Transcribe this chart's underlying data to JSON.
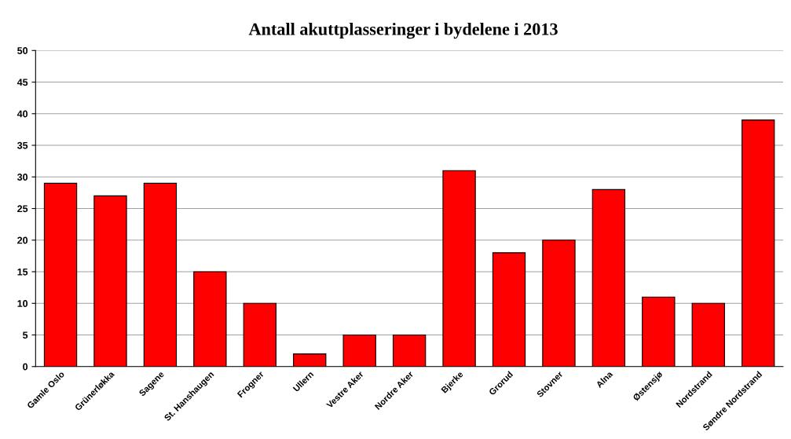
{
  "chart_data": {
    "type": "bar",
    "title": "Antall akuttplasseringer i bydelene i 2013",
    "categories": [
      "Gamle Oslo",
      "Grünerløkka",
      "Sagene",
      "St. Hanshaugen",
      "Frogner",
      "Ullern",
      "Vestre Aker",
      "Nordre Aker",
      "Bjerke",
      "Grorud",
      "Stovner",
      "Alna",
      "Østensjø",
      "Nordstrand",
      "Søndre Nordstrand"
    ],
    "values": [
      29,
      27,
      29,
      15,
      10,
      2,
      5,
      5,
      31,
      18,
      20,
      28,
      11,
      10,
      39
    ],
    "color": "#ff0000",
    "ylim": [
      0,
      50
    ],
    "yticks": [
      0,
      5,
      10,
      15,
      20,
      25,
      30,
      35,
      40,
      45,
      50
    ],
    "grid": "y"
  }
}
